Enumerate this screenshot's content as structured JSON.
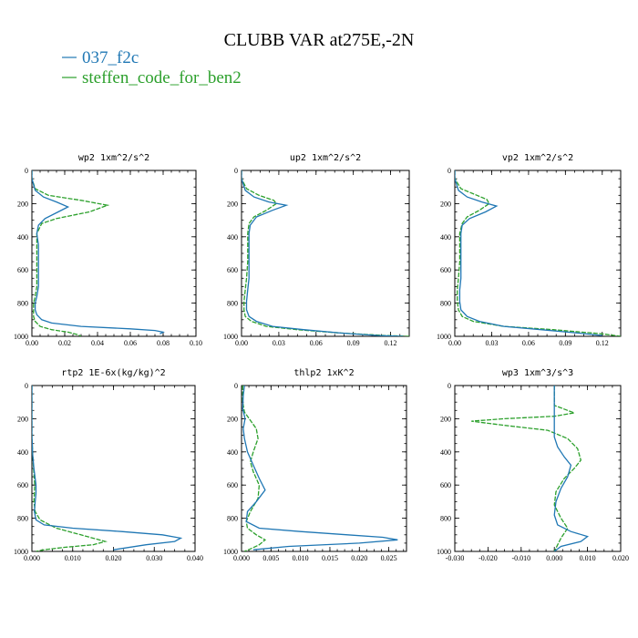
{
  "title": "CLUBB VAR at275E,-2N",
  "legend": [
    {
      "label": "037_f2c",
      "color": "#1f77b4"
    },
    {
      "label": "steffen_code_for_ben2",
      "color": "#2ca02c"
    }
  ],
  "chart_data": [
    {
      "type": "line",
      "title": "wp2",
      "units": "1xm^2/s^2",
      "xlim": [
        0,
        0.1
      ],
      "xticks": [
        "0.00",
        "0.02",
        "0.04",
        "0.06",
        "0.08",
        "0.10"
      ],
      "ylim": [
        0,
        1000
      ],
      "yticks": [
        "0",
        "200",
        "400",
        "600",
        "800",
        "1000"
      ],
      "y_inverted": true,
      "series": [
        {
          "name": "037_f2c",
          "color": "#1f77b4",
          "x": [
            0.0,
            0.0,
            0.002,
            0.007,
            0.015,
            0.022,
            0.016,
            0.008,
            0.004,
            0.003,
            0.004,
            0.004,
            0.004,
            0.004,
            0.004,
            0.003,
            0.002,
            0.002,
            0.003,
            0.006,
            0.012,
            0.03,
            0.06,
            0.075,
            0.08,
            0.078
          ],
          "y": [
            0,
            50,
            120,
            160,
            190,
            220,
            250,
            290,
            330,
            380,
            450,
            530,
            600,
            650,
            700,
            760,
            800,
            840,
            870,
            900,
            920,
            940,
            955,
            965,
            975,
            985
          ]
        },
        {
          "name": "steffen_code_for_ben2",
          "color": "#2ca02c",
          "x": [
            0.0,
            0.0,
            0.002,
            0.01,
            0.03,
            0.046,
            0.035,
            0.015,
            0.006,
            0.003,
            0.003,
            0.003,
            0.003,
            0.003,
            0.003,
            0.002,
            0.001,
            0.001,
            0.001,
            0.002,
            0.005,
            0.012,
            0.022,
            0.028,
            0.03
          ],
          "y": [
            0,
            50,
            110,
            150,
            180,
            210,
            250,
            290,
            320,
            380,
            450,
            530,
            600,
            650,
            700,
            760,
            800,
            850,
            880,
            910,
            940,
            960,
            975,
            990,
            1000
          ]
        }
      ]
    },
    {
      "type": "line",
      "title": "up2",
      "units": "1xm^2/s^2",
      "xlim": [
        0,
        0.135
      ],
      "xticks": [
        "0.00",
        "0.03",
        "0.06",
        "0.09",
        "0.12"
      ],
      "ylim": [
        0,
        1000
      ],
      "yticks": [
        "0",
        "200",
        "400",
        "600",
        "800",
        "1000"
      ],
      "y_inverted": true,
      "series": [
        {
          "name": "037_f2c",
          "color": "#1f77b4",
          "x": [
            0.0,
            0.0,
            0.003,
            0.01,
            0.022,
            0.036,
            0.025,
            0.012,
            0.007,
            0.006,
            0.006,
            0.006,
            0.006,
            0.005,
            0.004,
            0.004,
            0.006,
            0.012,
            0.025,
            0.05,
            0.08,
            0.11,
            0.13
          ],
          "y": [
            0,
            50,
            120,
            160,
            190,
            210,
            240,
            280,
            330,
            380,
            450,
            550,
            650,
            720,
            790,
            840,
            880,
            910,
            940,
            960,
            980,
            995,
            1000
          ]
        },
        {
          "name": "steffen_code_for_ben2",
          "color": "#2ca02c",
          "x": [
            0.0,
            0.0,
            0.004,
            0.014,
            0.026,
            0.028,
            0.02,
            0.01,
            0.006,
            0.005,
            0.005,
            0.005,
            0.004,
            0.003,
            0.002,
            0.002,
            0.003,
            0.008,
            0.02,
            0.045,
            0.08,
            0.115,
            0.135
          ],
          "y": [
            0,
            50,
            110,
            150,
            180,
            200,
            240,
            280,
            320,
            380,
            450,
            550,
            650,
            720,
            790,
            840,
            880,
            910,
            940,
            960,
            980,
            995,
            1000
          ]
        }
      ]
    },
    {
      "type": "line",
      "title": "vp2",
      "units": "1xm^2/s^2",
      "xlim": [
        0,
        0.135
      ],
      "xticks": [
        "0.00",
        "0.03",
        "0.06",
        "0.09",
        "0.12"
      ],
      "ylim": [
        0,
        1000
      ],
      "yticks": [
        "0",
        "200",
        "400",
        "600",
        "800",
        "1000"
      ],
      "y_inverted": true,
      "series": [
        {
          "name": "037_f2c",
          "color": "#1f77b4",
          "x": [
            0.0,
            0.0,
            0.003,
            0.01,
            0.022,
            0.034,
            0.025,
            0.012,
            0.006,
            0.005,
            0.005,
            0.005,
            0.005,
            0.004,
            0.004,
            0.005,
            0.01,
            0.02,
            0.04,
            0.07,
            0.1,
            0.12
          ],
          "y": [
            0,
            50,
            120,
            160,
            190,
            215,
            250,
            290,
            330,
            380,
            450,
            550,
            650,
            720,
            790,
            840,
            880,
            910,
            940,
            960,
            980,
            995
          ]
        },
        {
          "name": "steffen_code_for_ben2",
          "color": "#2ca02c",
          "x": [
            0.0,
            0.0,
            0.005,
            0.018,
            0.026,
            0.028,
            0.02,
            0.01,
            0.006,
            0.004,
            0.004,
            0.004,
            0.003,
            0.002,
            0.002,
            0.003,
            0.006,
            0.015,
            0.04,
            0.08,
            0.12,
            0.135
          ],
          "y": [
            0,
            50,
            110,
            150,
            175,
            200,
            240,
            280,
            320,
            380,
            450,
            550,
            650,
            720,
            790,
            840,
            880,
            910,
            940,
            960,
            985,
            1000
          ]
        }
      ]
    },
    {
      "type": "line",
      "title": "rtp2",
      "units": "1E-6x(kg/kg)^2",
      "xlim": [
        0,
        0.04
      ],
      "xticks": [
        "0.000",
        "0.010",
        "0.020",
        "0.030",
        "0.040"
      ],
      "ylim": [
        0,
        1000
      ],
      "yticks": [
        "0",
        "200",
        "400",
        "600",
        "800",
        "1000"
      ],
      "y_inverted": true,
      "series": [
        {
          "name": "037_f2c",
          "color": "#1f77b4",
          "x": [
            0.0,
            0.0,
            0.0002,
            0.0005,
            0.0008,
            0.001,
            0.001,
            0.0008,
            0.0006,
            0.001,
            0.003,
            0.01,
            0.022,
            0.032,
            0.0365,
            0.035,
            0.028,
            0.02
          ],
          "y": [
            0,
            300,
            420,
            500,
            560,
            600,
            650,
            700,
            760,
            810,
            840,
            860,
            880,
            900,
            920,
            940,
            960,
            990
          ]
        },
        {
          "name": "steffen_code_for_ben2",
          "color": "#2ca02c",
          "x": [
            0.0,
            0.0,
            0.0002,
            0.0004,
            0.0006,
            0.0007,
            0.0006,
            0.0005,
            0.0008,
            0.002,
            0.006,
            0.012,
            0.018,
            0.015,
            0.008,
            0.003,
            0.001
          ],
          "y": [
            0,
            300,
            420,
            500,
            560,
            600,
            650,
            700,
            760,
            810,
            860,
            900,
            940,
            960,
            975,
            990,
            1000
          ]
        }
      ]
    },
    {
      "type": "line",
      "title": "thlp2",
      "units": "1xK^2",
      "xlim": [
        0,
        0.028
      ],
      "xticks": [
        "0.000",
        "0.005",
        "0.010",
        "0.015",
        "0.020",
        "0.025"
      ],
      "ylim": [
        0,
        1000
      ],
      "yticks": [
        "0",
        "200",
        "400",
        "600",
        "800",
        "1000"
      ],
      "y_inverted": true,
      "series": [
        {
          "name": "037_f2c",
          "color": "#1f77b4",
          "x": [
            0.0005,
            0.0003,
            0.0002,
            0.0006,
            0.0003,
            0.0005,
            0.001,
            0.002,
            0.003,
            0.004,
            0.0025,
            0.001,
            0.0008,
            0.003,
            0.01,
            0.018,
            0.024,
            0.0265,
            0.02,
            0.008,
            0.002
          ],
          "y": [
            0,
            60,
            140,
            200,
            260,
            320,
            400,
            480,
            560,
            630,
            700,
            760,
            820,
            860,
            880,
            900,
            915,
            930,
            950,
            970,
            990
          ]
        },
        {
          "name": "steffen_code_for_ben2",
          "color": "#2ca02c",
          "x": [
            0.0002,
            0.0002,
            0.0005,
            0.0015,
            0.0025,
            0.0028,
            0.002,
            0.0015,
            0.002,
            0.003,
            0.0028,
            0.0015,
            0.0008,
            0.001,
            0.0025,
            0.004,
            0.003,
            0.0015,
            0.0005
          ],
          "y": [
            0,
            100,
            160,
            210,
            260,
            320,
            400,
            460,
            520,
            600,
            680,
            760,
            820,
            860,
            900,
            930,
            960,
            985,
            1000
          ]
        }
      ]
    },
    {
      "type": "line",
      "title": "wp3",
      "units": "1xm^3/s^3",
      "xlim": [
        -0.03,
        0.02
      ],
      "xticks": [
        "-0.030",
        "-0.020",
        "-0.010",
        "0.000",
        "0.010",
        "0.020"
      ],
      "ylim": [
        0,
        1000
      ],
      "yticks": [
        "0",
        "200",
        "400",
        "600",
        "800",
        "1000"
      ],
      "y_inverted": true,
      "series": [
        {
          "name": "037_f2c",
          "color": "#1f77b4",
          "x": [
            0.0,
            0.0,
            0.0,
            0.001,
            0.003,
            0.005,
            0.004,
            0.002,
            0.0005,
            0.0,
            0.001,
            0.005,
            0.01,
            0.008,
            0.002,
            0.0
          ],
          "y": [
            0,
            200,
            310,
            370,
            430,
            480,
            550,
            620,
            700,
            780,
            840,
            880,
            910,
            940,
            970,
            1000
          ]
        },
        {
          "name": "steffen_code_for_ben2",
          "color": "#2ca02c",
          "x": [
            0.0,
            0.0,
            0.004,
            0.006,
            0.0,
            -0.015,
            -0.025,
            -0.015,
            -0.002,
            0.004,
            0.007,
            0.008,
            0.006,
            0.003,
            0.0005,
            0.0,
            0.002,
            0.004,
            0.002,
            0.0
          ],
          "y": [
            0,
            120,
            150,
            165,
            185,
            200,
            215,
            240,
            270,
            320,
            380,
            450,
            500,
            560,
            640,
            720,
            800,
            860,
            920,
            1000
          ]
        }
      ]
    }
  ]
}
